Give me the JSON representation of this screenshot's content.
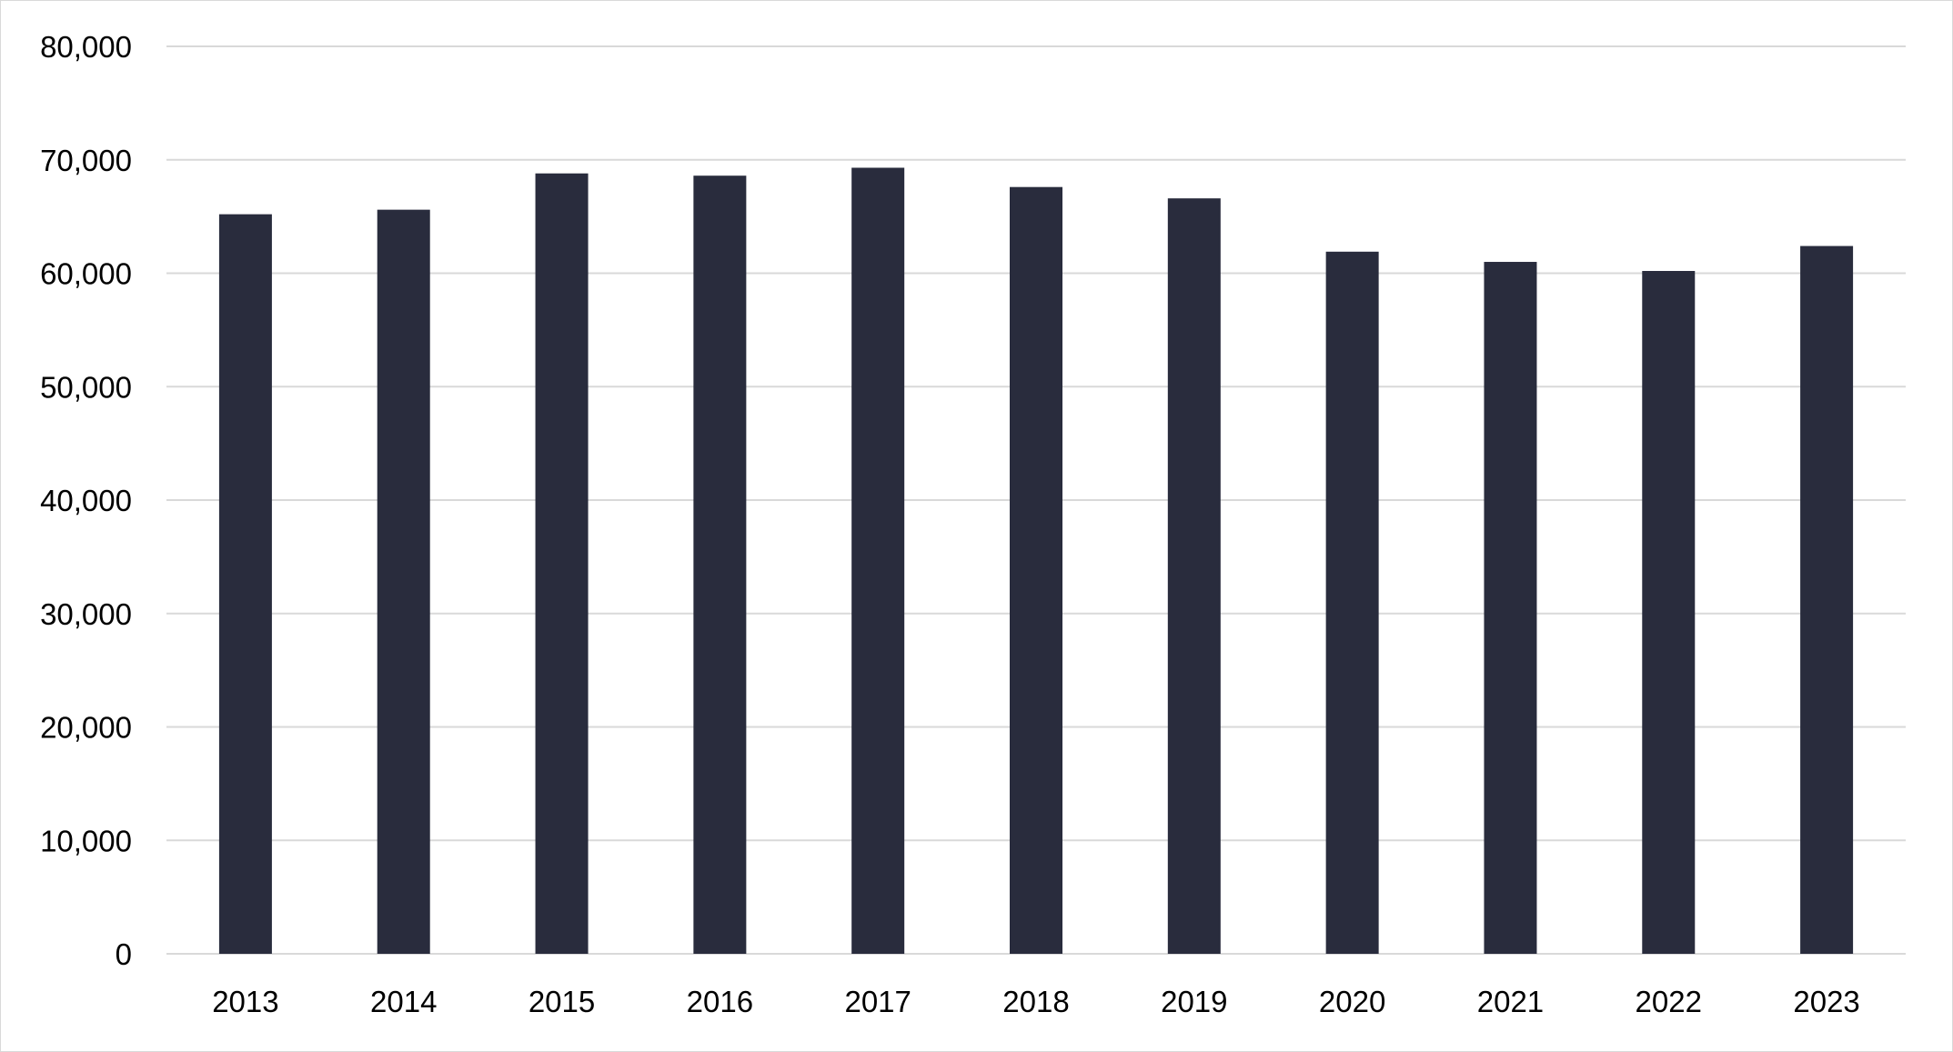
{
  "chart_data": {
    "type": "bar",
    "title": "",
    "xlabel": "",
    "ylabel": "",
    "categories": [
      "2013",
      "2014",
      "2015",
      "2016",
      "2017",
      "2018",
      "2019",
      "2020",
      "2021",
      "2022",
      "2023"
    ],
    "values": [
      65200,
      65600,
      68800,
      68600,
      69300,
      67600,
      66600,
      61900,
      61000,
      60200,
      62400
    ],
    "ylim": [
      0,
      80000
    ],
    "yticks": [
      0,
      10000,
      20000,
      30000,
      40000,
      50000,
      60000,
      70000,
      80000
    ],
    "ytick_labels": [
      "0",
      "10,000",
      "20,000",
      "30,000",
      "40,000",
      "50,000",
      "60,000",
      "70,000",
      "80,000"
    ],
    "grid": true,
    "legend": "none",
    "bar_color": "#292c3d"
  }
}
